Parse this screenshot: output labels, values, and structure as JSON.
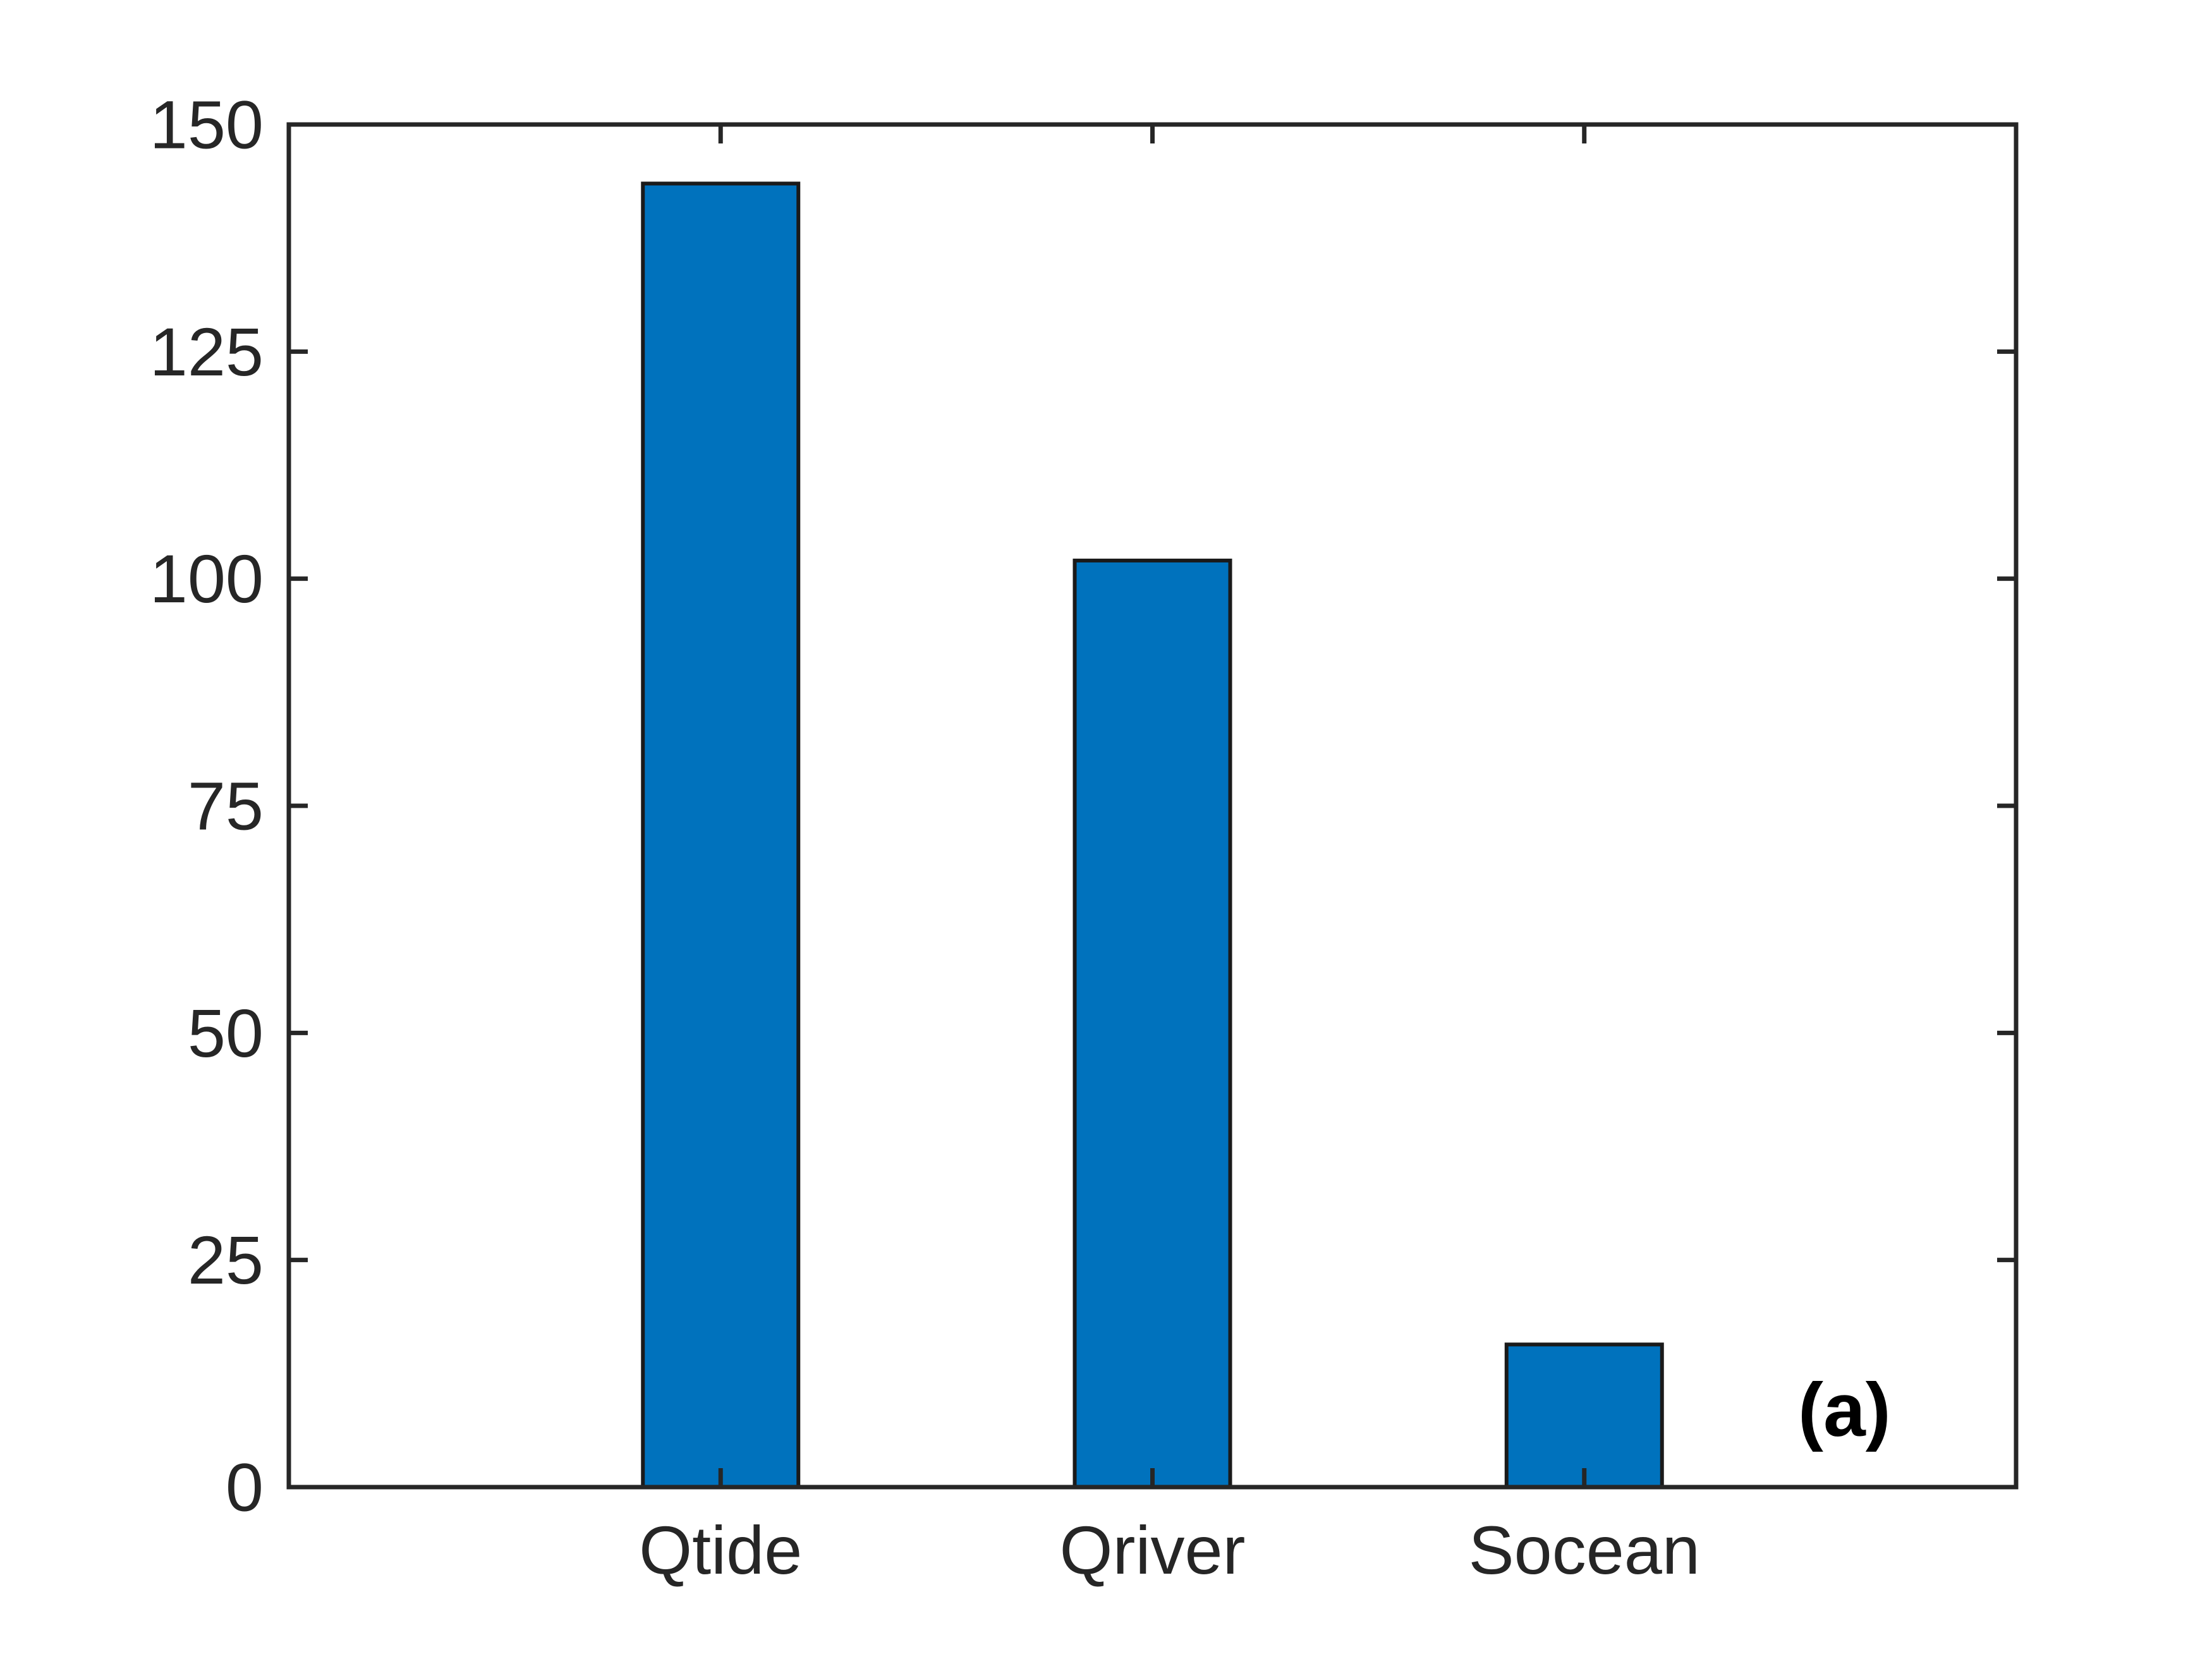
{
  "chart_data": {
    "type": "bar",
    "categories": [
      "Qtide",
      "Qriver",
      "Socean"
    ],
    "values": [
      143.5,
      102,
      15.7
    ],
    "ylim": [
      0,
      150
    ],
    "yticks": [
      "0",
      "25",
      "50",
      "75",
      "100",
      "125",
      "150"
    ],
    "title": "",
    "xlabel": "",
    "ylabel": "",
    "grid": false,
    "bar_color": "#0072BD",
    "edge_color": "#1a1a1a",
    "axis_color": "#262626",
    "panel_label": "(a)"
  }
}
